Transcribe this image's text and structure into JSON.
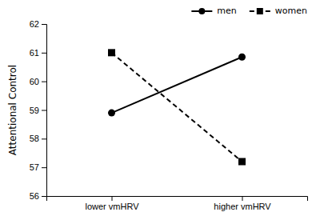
{
  "chart_data": {
    "type": "line",
    "categories": [
      "lower vmHRV",
      "higher vmHRV"
    ],
    "series": [
      {
        "name": "men",
        "color": "#000000",
        "marker": "circle",
        "line_style": "solid",
        "values": [
          58.9,
          60.85
        ]
      },
      {
        "name": "women",
        "color": "#000000",
        "marker": "square",
        "line_style": "dashed",
        "values": [
          61.0,
          57.2
        ]
      }
    ],
    "ylabel": "Attentional Control",
    "ylim": [
      56,
      62
    ],
    "yticks": [
      56,
      57,
      58,
      59,
      60,
      61,
      62
    ],
    "grid": false,
    "legend": "upper right"
  }
}
